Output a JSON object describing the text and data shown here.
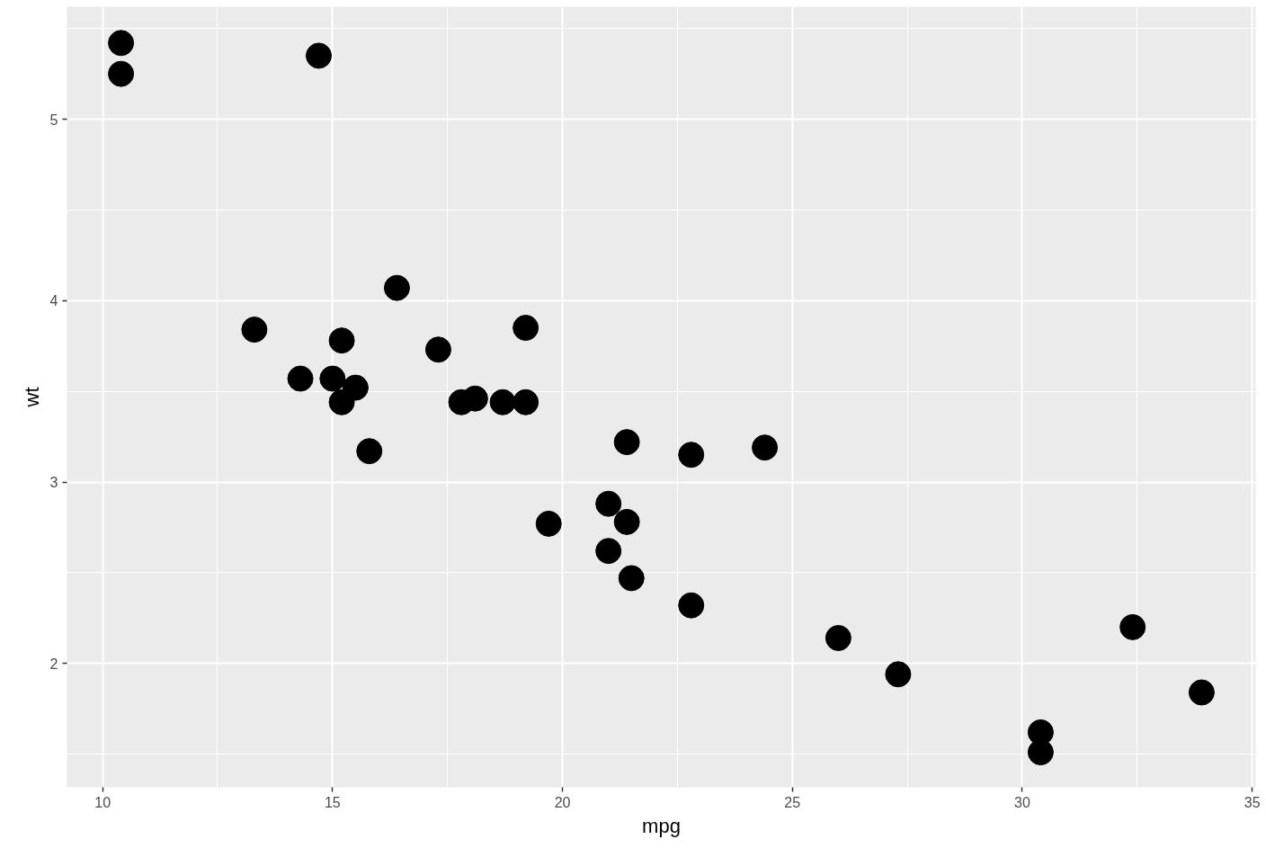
{
  "chart_data": {
    "type": "scatter",
    "xlabel": "mpg",
    "ylabel": "wt",
    "x": [
      21.0,
      21.0,
      22.8,
      21.4,
      18.7,
      18.1,
      14.3,
      24.4,
      22.8,
      19.2,
      17.8,
      16.4,
      17.3,
      15.2,
      10.4,
      10.4,
      14.7,
      32.4,
      30.4,
      33.9,
      21.5,
      15.5,
      15.2,
      13.3,
      19.2,
      27.3,
      26.0,
      30.4,
      15.8,
      19.7,
      15.0,
      21.4
    ],
    "series": [
      {
        "color": "#000000",
        "values": [
          2.62,
          2.88,
          2.32,
          3.22,
          3.44,
          3.46,
          3.57,
          3.19,
          3.15,
          3.44,
          3.44,
          4.07,
          3.73,
          3.78,
          5.25,
          5.42,
          5.35,
          2.2,
          1.62,
          1.84,
          2.47,
          3.52,
          3.44,
          3.84,
          3.85,
          1.94,
          2.14,
          1.51,
          3.17,
          2.77,
          3.57,
          2.78
        ]
      }
    ],
    "xlim": [
      9.225,
      35.075
    ],
    "ylim": [
      1.317,
      5.62
    ],
    "xticks": [
      10,
      {
        "value": 12.5,
        "label": null
      },
      15,
      {
        "value": 17.5,
        "label": null
      },
      20,
      {
        "value": 22.5,
        "label": null
      },
      25,
      {
        "value": 27.5,
        "label": null
      },
      30,
      {
        "value": 32.5,
        "label": null
      },
      35
    ],
    "yticks": [
      {
        "value": 1.5,
        "label": null
      },
      2,
      {
        "value": 2.5,
        "label": null
      },
      3,
      {
        "value": 3.5,
        "label": null
      },
      4,
      {
        "value": 4.5,
        "label": null
      },
      5,
      {
        "value": 5.5,
        "label": null
      }
    ],
    "grid": true,
    "marker": "circle"
  }
}
